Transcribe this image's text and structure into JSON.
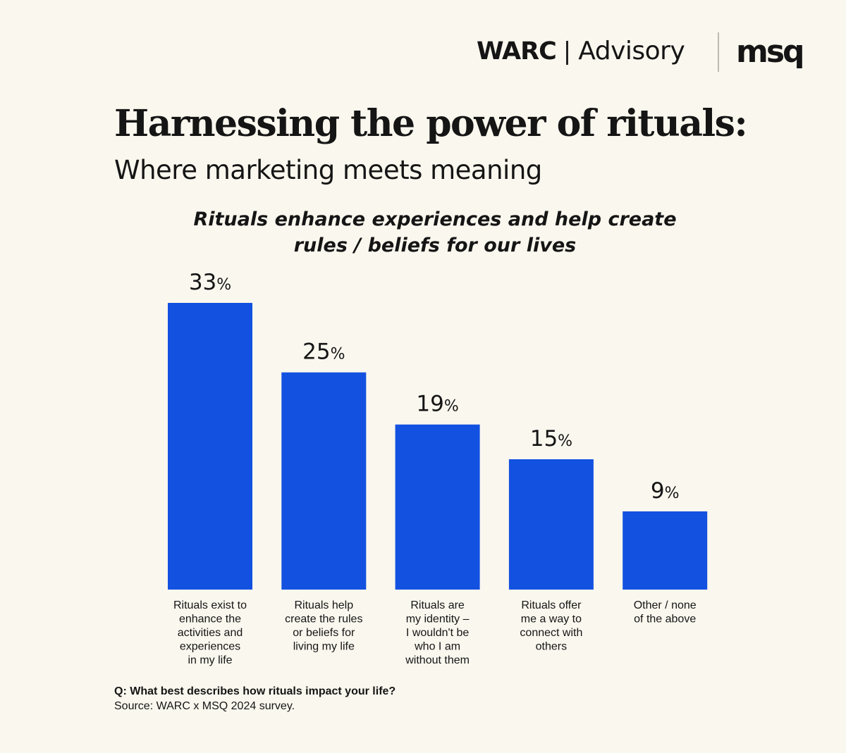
{
  "brand": {
    "warc": "WARC",
    "separator": "|",
    "advisory": "Advisory",
    "msq": "msq"
  },
  "title": "Harnessing the power of rituals:",
  "subtitle": "Where marketing meets meaning",
  "colors": {
    "background": "#faf7ee",
    "bar": "#1351e0",
    "text": "#151515"
  },
  "chart_data": {
    "type": "bar",
    "title": [
      "Rituals enhance experiences and help create",
      "rules / beliefs for our lives"
    ],
    "categories": [
      [
        "Rituals exist to",
        "enhance the",
        "activities and",
        "experiences",
        "in my life"
      ],
      [
        "Rituals help",
        "create the rules",
        "or beliefs for",
        "living my life"
      ],
      [
        "Rituals are",
        "my identity –",
        "I wouldn't be",
        "who I am",
        "without them"
      ],
      [
        "Rituals offer",
        "me a way to",
        "connect with",
        "others"
      ],
      [
        "Other / none",
        "of the above"
      ]
    ],
    "values": [
      33,
      25,
      19,
      15,
      9
    ],
    "value_suffix": "%",
    "ylim": [
      0,
      33
    ],
    "grid": false,
    "xlabel": "",
    "ylabel": ""
  },
  "footer": {
    "question": "Q: What best describes how rituals impact your life?",
    "source": "Source: WARC x MSQ 2024 survey."
  }
}
